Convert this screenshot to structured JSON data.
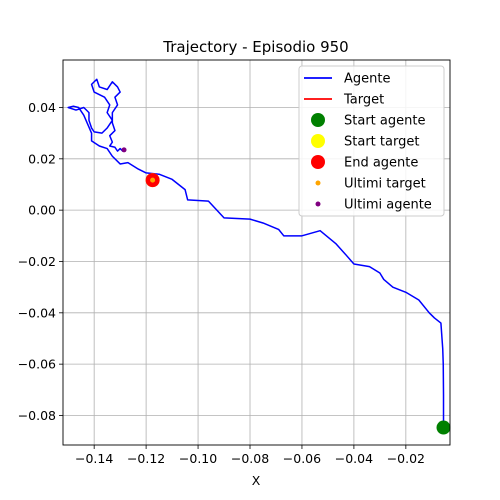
{
  "chart_data": {
    "type": "line",
    "title": "Trajectory - Episodio 950",
    "xlabel": "X",
    "ylabel": "",
    "xlim": [
      -0.152,
      -0.003
    ],
    "ylim": [
      -0.0915,
      0.0585
    ],
    "grid": true,
    "legend_position": "top-right",
    "x_ticks": [
      -0.14,
      -0.12,
      -0.1,
      -0.08,
      -0.06,
      -0.04,
      -0.02
    ],
    "x_tick_labels": [
      "−0.14",
      "−0.12",
      "−0.10",
      "−0.08",
      "−0.06",
      "−0.04",
      "−0.02"
    ],
    "y_ticks": [
      -0.08,
      -0.06,
      -0.04,
      -0.02,
      0.0,
      0.02,
      0.04
    ],
    "y_tick_labels": [
      "−0.08",
      "−0.06",
      "−0.04",
      "−0.02",
      "0.00",
      "0.02",
      "0.04"
    ],
    "series": [
      {
        "name": "Agente",
        "kind": "line",
        "color": "#0000ff",
        "points": [
          [
            -0.0055,
            -0.0847
          ],
          [
            -0.0055,
            -0.072
          ],
          [
            -0.0056,
            -0.06
          ],
          [
            -0.0058,
            -0.054
          ],
          [
            -0.0065,
            -0.044
          ],
          [
            -0.009,
            -0.042
          ],
          [
            -0.011,
            -0.04
          ],
          [
            -0.015,
            -0.035
          ],
          [
            -0.02,
            -0.032
          ],
          [
            -0.025,
            -0.03
          ],
          [
            -0.0285,
            -0.027
          ],
          [
            -0.03,
            -0.0245
          ],
          [
            -0.034,
            -0.022
          ],
          [
            -0.04,
            -0.021
          ],
          [
            -0.043,
            -0.0175
          ],
          [
            -0.047,
            -0.013
          ],
          [
            -0.053,
            -0.008
          ],
          [
            -0.06,
            -0.01
          ],
          [
            -0.067,
            -0.01
          ],
          [
            -0.069,
            -0.0075
          ],
          [
            -0.075,
            -0.005
          ],
          [
            -0.08,
            -0.0035
          ],
          [
            -0.09,
            -0.003
          ],
          [
            -0.096,
            0.0035
          ],
          [
            -0.104,
            0.004
          ],
          [
            -0.105,
            0.008
          ],
          [
            -0.11,
            0.012
          ],
          [
            -0.115,
            0.014
          ],
          [
            -0.12,
            0.0145
          ],
          [
            -0.123,
            0.016
          ],
          [
            -0.127,
            0.0185
          ],
          [
            -0.13,
            0.018
          ],
          [
            -0.133,
            0.021
          ],
          [
            -0.135,
            0.024
          ],
          [
            -0.138,
            0.025
          ],
          [
            -0.141,
            0.027
          ],
          [
            -0.141,
            0.03
          ],
          [
            -0.144,
            0.037
          ],
          [
            -0.146,
            0.04
          ],
          [
            -0.148,
            0.0405
          ],
          [
            -0.15,
            0.04
          ],
          [
            -0.147,
            0.039
          ],
          [
            -0.144,
            0.04
          ],
          [
            -0.142,
            0.038
          ],
          [
            -0.142,
            0.035
          ],
          [
            -0.141,
            0.032
          ],
          [
            -0.14,
            0.0305
          ],
          [
            -0.137,
            0.03
          ],
          [
            -0.135,
            0.032
          ],
          [
            -0.133,
            0.035
          ],
          [
            -0.135,
            0.038
          ],
          [
            -0.134,
            0.041
          ],
          [
            -0.136,
            0.044
          ],
          [
            -0.14,
            0.046
          ],
          [
            -0.141,
            0.049
          ],
          [
            -0.139,
            0.051
          ],
          [
            -0.138,
            0.048
          ],
          [
            -0.135,
            0.047
          ],
          [
            -0.133,
            0.05
          ],
          [
            -0.131,
            0.048
          ],
          [
            -0.13,
            0.046
          ],
          [
            -0.132,
            0.044
          ],
          [
            -0.131,
            0.041
          ],
          [
            -0.133,
            0.038
          ],
          [
            -0.133,
            0.034
          ],
          [
            -0.132,
            0.031
          ],
          [
            -0.134,
            0.029
          ],
          [
            -0.133,
            0.0265
          ],
          [
            -0.134,
            0.025
          ],
          [
            -0.132,
            0.0245
          ],
          [
            -0.131,
            0.023
          ],
          [
            -0.13,
            0.024
          ],
          [
            -0.129,
            0.023
          ],
          [
            -0.128,
            0.024
          ]
        ]
      },
      {
        "name": "Target",
        "kind": "line",
        "color": "#ff0000",
        "points": []
      },
      {
        "name": "Start agente",
        "kind": "marker",
        "color": "#008000",
        "size": "large",
        "points": [
          [
            -0.0055,
            -0.0847
          ]
        ]
      },
      {
        "name": "Start target",
        "kind": "marker",
        "color": "#ffff00",
        "size": "large",
        "points": [
          [
            -0.1175,
            0.0117
          ]
        ]
      },
      {
        "name": "End agente",
        "kind": "marker",
        "color": "#ff0000",
        "size": "large",
        "points": [
          [
            -0.1175,
            0.0117
          ]
        ]
      },
      {
        "name": "Ultimi target",
        "kind": "marker",
        "color": "#ffa500",
        "size": "small",
        "points": [
          [
            -0.1175,
            0.0117
          ]
        ]
      },
      {
        "name": "Ultimi agente",
        "kind": "marker",
        "color": "#800080",
        "size": "small",
        "points": [
          [
            -0.1285,
            0.0235
          ]
        ]
      }
    ]
  }
}
